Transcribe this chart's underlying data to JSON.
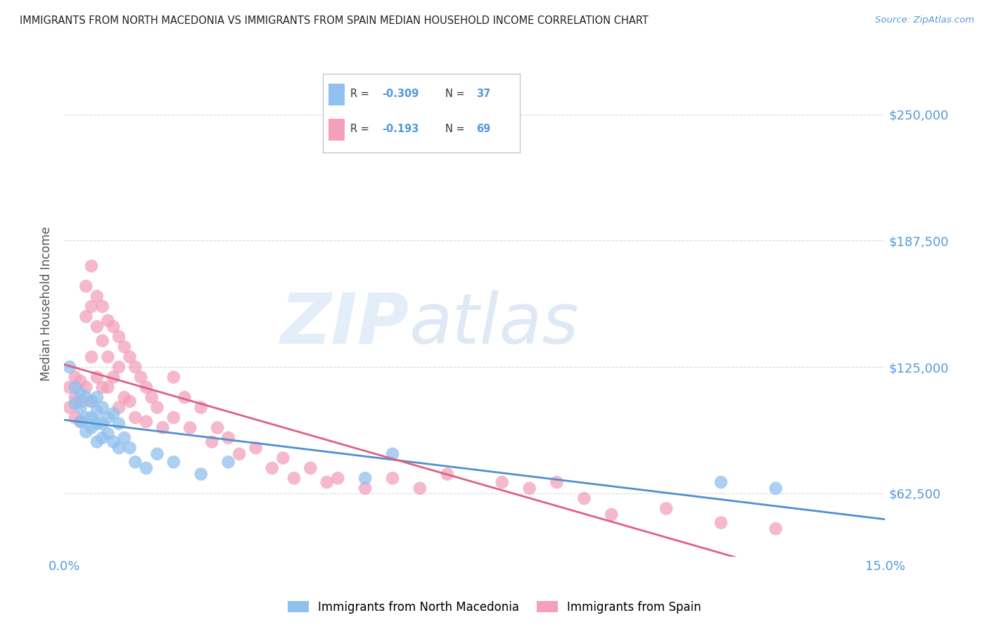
{
  "title": "IMMIGRANTS FROM NORTH MACEDONIA VS IMMIGRANTS FROM SPAIN MEDIAN HOUSEHOLD INCOME CORRELATION CHART",
  "source": "Source: ZipAtlas.com",
  "ylabel": "Median Household Income",
  "xlim": [
    0.0,
    0.15
  ],
  "ylim": [
    31250,
    281250
  ],
  "yticks": [
    62500,
    125000,
    187500,
    250000
  ],
  "ytick_labels": [
    "$62,500",
    "$125,000",
    "$187,500",
    "$250,000"
  ],
  "xticks": [
    0.0,
    0.15
  ],
  "xtick_labels": [
    "0.0%",
    "15.0%"
  ],
  "background_color": "#ffffff",
  "grid_color": "#d8d8e8",
  "blue_color": "#90c0ee",
  "pink_color": "#f4a0bb",
  "blue_line_color": "#5090d0",
  "pink_line_color": "#e06080",
  "title_color": "#222222",
  "axis_label_color": "#555555",
  "tick_label_color": "#5599dd",
  "legend_R_color": "#333333",
  "watermark_zip": "ZIP",
  "watermark_atlas": "atlas",
  "blue_scatter_x": [
    0.001,
    0.002,
    0.002,
    0.003,
    0.003,
    0.003,
    0.004,
    0.004,
    0.004,
    0.005,
    0.005,
    0.005,
    0.006,
    0.006,
    0.006,
    0.006,
    0.007,
    0.007,
    0.007,
    0.008,
    0.008,
    0.009,
    0.009,
    0.01,
    0.01,
    0.011,
    0.012,
    0.013,
    0.015,
    0.017,
    0.02,
    0.025,
    0.03,
    0.055,
    0.06,
    0.12,
    0.13
  ],
  "blue_scatter_y": [
    125000,
    115000,
    107000,
    112000,
    105000,
    98000,
    110000,
    100000,
    93000,
    108000,
    100000,
    95000,
    110000,
    103000,
    97000,
    88000,
    105000,
    97000,
    90000,
    100000,
    92000,
    102000,
    88000,
    97000,
    85000,
    90000,
    85000,
    78000,
    75000,
    82000,
    78000,
    72000,
    78000,
    70000,
    82000,
    68000,
    65000
  ],
  "pink_scatter_x": [
    0.001,
    0.001,
    0.002,
    0.002,
    0.002,
    0.003,
    0.003,
    0.003,
    0.004,
    0.004,
    0.004,
    0.005,
    0.005,
    0.005,
    0.005,
    0.006,
    0.006,
    0.006,
    0.007,
    0.007,
    0.007,
    0.008,
    0.008,
    0.008,
    0.009,
    0.009,
    0.01,
    0.01,
    0.01,
    0.011,
    0.011,
    0.012,
    0.012,
    0.013,
    0.013,
    0.014,
    0.015,
    0.015,
    0.016,
    0.017,
    0.018,
    0.02,
    0.02,
    0.022,
    0.023,
    0.025,
    0.027,
    0.028,
    0.03,
    0.032,
    0.035,
    0.038,
    0.04,
    0.042,
    0.045,
    0.048,
    0.05,
    0.055,
    0.06,
    0.065,
    0.07,
    0.08,
    0.085,
    0.09,
    0.095,
    0.1,
    0.11,
    0.12,
    0.13
  ],
  "pink_scatter_y": [
    115000,
    105000,
    120000,
    110000,
    100000,
    118000,
    108000,
    98000,
    165000,
    150000,
    115000,
    175000,
    155000,
    130000,
    108000,
    160000,
    145000,
    120000,
    155000,
    138000,
    115000,
    148000,
    130000,
    115000,
    145000,
    120000,
    140000,
    125000,
    105000,
    135000,
    110000,
    130000,
    108000,
    125000,
    100000,
    120000,
    115000,
    98000,
    110000,
    105000,
    95000,
    120000,
    100000,
    110000,
    95000,
    105000,
    88000,
    95000,
    90000,
    82000,
    85000,
    75000,
    80000,
    70000,
    75000,
    68000,
    70000,
    65000,
    70000,
    65000,
    72000,
    68000,
    65000,
    68000,
    60000,
    52000,
    55000,
    48000,
    45000
  ]
}
